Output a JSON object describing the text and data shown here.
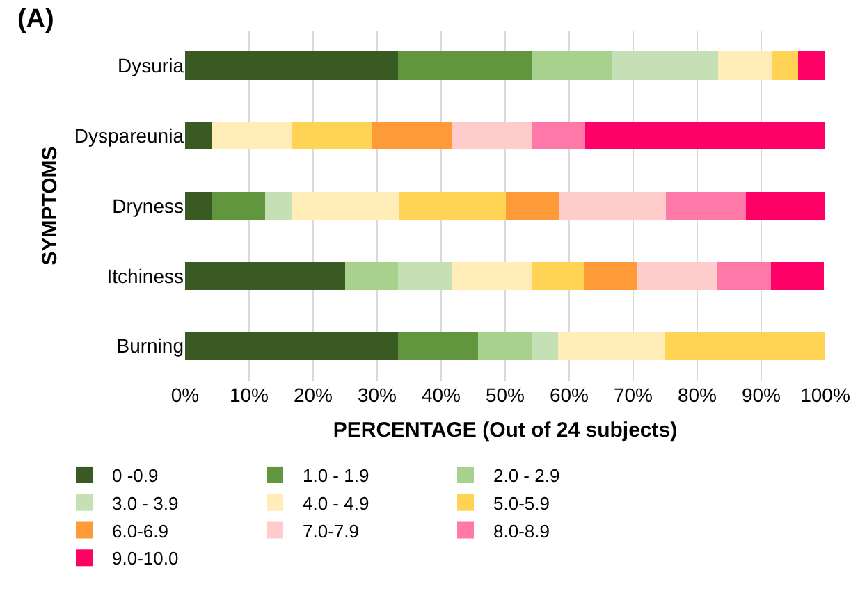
{
  "chart_data": {
    "type": "bar",
    "orientation": "horizontal",
    "stacked": true,
    "title": "(A)",
    "xlabel": "PERCENTAGE (Out of 24 subjects)",
    "ylabel": "SYMPTOMS",
    "categories": [
      "Dysuria",
      "Dyspareunia",
      "Dryness",
      "Itchiness",
      "Burning"
    ],
    "series": [
      {
        "name": "0 -0.9",
        "color": "#3a5a24",
        "values": [
          33.3,
          4.2,
          4.2,
          25,
          33.3
        ]
      },
      {
        "name": "1.0 - 1.9",
        "color": "#61953e",
        "values": [
          20.8,
          0,
          8.3,
          0,
          12.5
        ]
      },
      {
        "name": "2.0 - 2.9",
        "color": "#a9d18e",
        "values": [
          12.5,
          0,
          0,
          8.3,
          8.3
        ]
      },
      {
        "name": "3.0 - 3.9",
        "color": "#c5e0b4",
        "values": [
          16.7,
          0,
          4.2,
          8.3,
          4.2
        ]
      },
      {
        "name": "4.0 - 4.9",
        "color": "#ffecb6",
        "values": [
          8.3,
          12.5,
          16.7,
          12.5,
          16.7
        ]
      },
      {
        "name": "5.0-5.9",
        "color": "#ffd455",
        "values": [
          4.2,
          12.5,
          16.7,
          8.3,
          25
        ]
      },
      {
        "name": "6.0-6.9",
        "color": "#ff9a38",
        "values": [
          0,
          12.5,
          8.3,
          8.3,
          0
        ]
      },
      {
        "name": "7.0-7.9",
        "color": "#ffcccc",
        "values": [
          0,
          12.5,
          16.7,
          12.5,
          0
        ]
      },
      {
        "name": "8.0-8.9",
        "color": "#ff79a8",
        "values": [
          0,
          8.3,
          12.5,
          8.3,
          0
        ]
      },
      {
        "name": "9.0-10.0",
        "color": "#ff0066",
        "values": [
          4.2,
          37.5,
          12.5,
          8.3,
          0
        ]
      }
    ],
    "xlim": [
      0,
      100
    ],
    "xticks": [
      {
        "value": 0,
        "label": "0%"
      },
      {
        "value": 10,
        "label": "10%"
      },
      {
        "value": 20,
        "label": "20%"
      },
      {
        "value": 30,
        "label": "30%"
      },
      {
        "value": 40,
        "label": "40%"
      },
      {
        "value": 50,
        "label": "50%"
      },
      {
        "value": 60,
        "label": "60%"
      },
      {
        "value": 70,
        "label": "70%"
      },
      {
        "value": 80,
        "label": "80%"
      },
      {
        "value": 90,
        "label": "90%"
      },
      {
        "value": 100,
        "label": "100%"
      }
    ],
    "grid": "x",
    "legend": "bottom"
  }
}
